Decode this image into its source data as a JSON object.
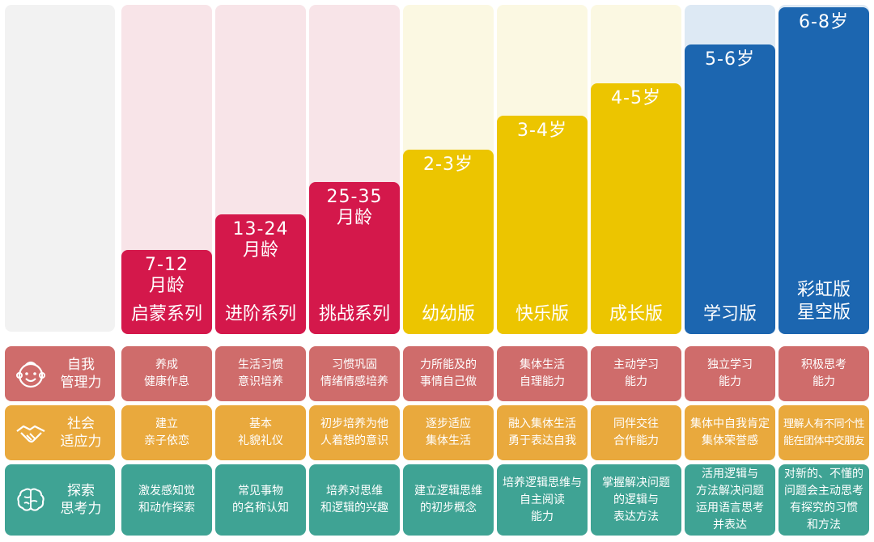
{
  "columns": [
    {
      "age": [
        "7-12",
        "月龄"
      ],
      "series": [
        "启蒙系列"
      ]
    },
    {
      "age": [
        "13-24",
        "月龄"
      ],
      "series": [
        "进阶系列"
      ]
    },
    {
      "age": [
        "25-35",
        "月龄"
      ],
      "series": [
        "挑战系列"
      ]
    },
    {
      "age": [
        "2-3岁"
      ],
      "series": [
        "幼幼版"
      ]
    },
    {
      "age": [
        "3-4岁"
      ],
      "series": [
        "快乐版"
      ]
    },
    {
      "age": [
        "4-5岁"
      ],
      "series": [
        "成长版"
      ]
    },
    {
      "age": [
        "5-6岁"
      ],
      "series": [
        "学习版"
      ]
    },
    {
      "age": [
        "6-8岁"
      ],
      "series": [
        "彩虹版",
        "星空版"
      ]
    }
  ],
  "rows": [
    {
      "label": [
        "自我",
        "管理力"
      ],
      "icon": "baby-face-icon",
      "cells": [
        [
          "养成",
          "健康作息"
        ],
        [
          "生活习惯",
          "意识培养"
        ],
        [
          "习惯巩固",
          "情绪情感培养"
        ],
        [
          "力所能及的",
          "事情自己做"
        ],
        [
          "集体生活",
          "自理能力"
        ],
        [
          "主动学习",
          "能力"
        ],
        [
          "独立学习",
          "能力"
        ],
        [
          "积极思考",
          "能力"
        ]
      ]
    },
    {
      "label": [
        "社会",
        "适应力"
      ],
      "icon": "handshake-icon",
      "cells": [
        [
          "建立",
          "亲子依恋"
        ],
        [
          "基本",
          "礼貌礼仪"
        ],
        [
          "初步培养为他",
          "人着想的意识"
        ],
        [
          "逐步适应",
          "集体生活"
        ],
        [
          "融入集体生活",
          "勇于表达自我"
        ],
        [
          "同伴交往",
          "合作能力"
        ],
        [
          "集体中自我肯定",
          "集体荣誉感"
        ],
        [
          "理解人有不同个性",
          "能在团体中交朋友"
        ]
      ]
    },
    {
      "label": [
        "探索",
        "思考力"
      ],
      "icon": "brain-icon",
      "cells": [
        [
          "激发感知觉",
          "和动作探索"
        ],
        [
          "常见事物",
          "的名称认知"
        ],
        [
          "培养对思维",
          "和逻辑的兴趣"
        ],
        [
          "建立逻辑思维",
          "的初步概念"
        ],
        [
          "培养逻辑思维与",
          "自主阅读",
          "能力"
        ],
        [
          "掌握解决问题",
          "的逻辑与",
          "表达方法"
        ],
        [
          "活用逻辑与",
          "方法解决问题",
          "运用语言思考",
          "并表达"
        ],
        [
          "对新的、不懂的",
          "问题会主动思考",
          "有探究的习惯",
          "和方法"
        ]
      ]
    }
  ],
  "colors": {
    "red": "#d4184b",
    "yellow": "#ecc500",
    "blue": "#1c66b0",
    "red_bg": "#f8e4e8",
    "yellow_bg": "#fbf8e2",
    "blue_bg": "#dde9f4",
    "gray_bg": "#f2f2f2",
    "row1": "#cf6c6b",
    "row2": "#e9a93d",
    "row3": "#3fa394"
  }
}
